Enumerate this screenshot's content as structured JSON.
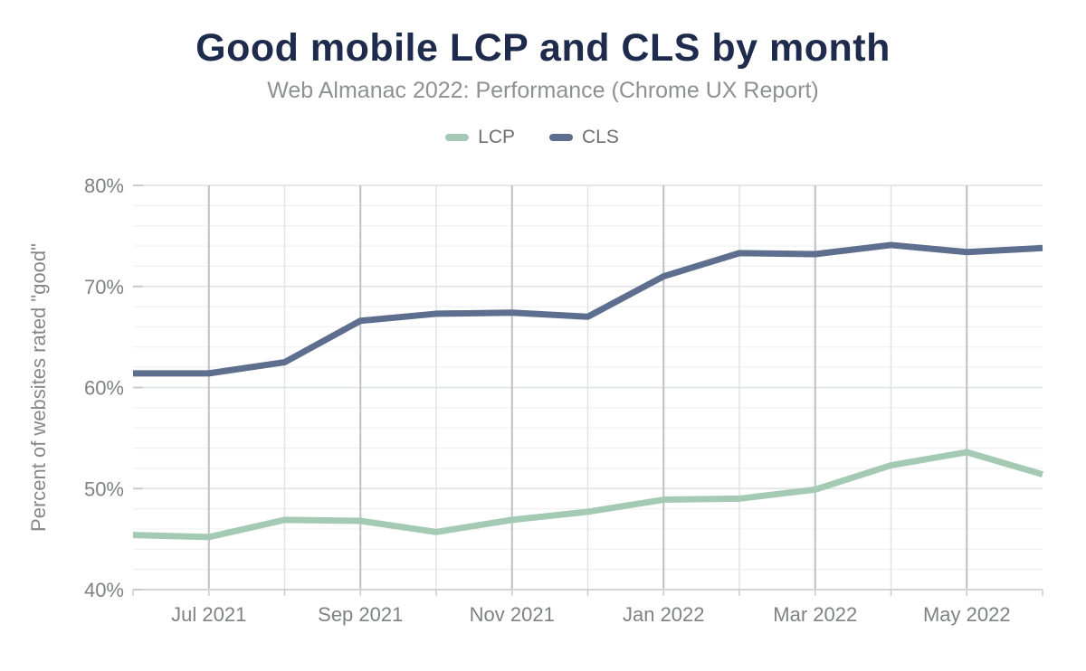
{
  "chart": {
    "title": "Good mobile LCP and CLS by month",
    "subtitle": "Web Almanac 2022: Performance (Chrome UX Report)",
    "legend": [
      {
        "label": "LCP"
      },
      {
        "label": "CLS"
      }
    ],
    "colors": {
      "title": "#1f2b4d",
      "subtitle": "#8e9092",
      "legend_label": "#6d6f72",
      "tick_label": "#7f8184",
      "axis_title": "#85878a",
      "grid_major": "#e2e4e6",
      "grid_minor": "#eff0f1",
      "grid_vert_labeled": "#bcc1c5",
      "grid_vert_unlabeled": "#dfe1e3",
      "axis_line": "#d2d5d7",
      "tick": "#c9ccce"
    }
  },
  "chart_data": {
    "type": "line",
    "title": "Good mobile LCP and CLS by month",
    "subtitle": "Web Almanac 2022: Performance (Chrome UX Report)",
    "xlabel": "",
    "ylabel": "Percent of websites rated \"good\"",
    "x": [
      "Jun 2021",
      "Jul 2021",
      "Aug 2021",
      "Sep 2021",
      "Oct 2021",
      "Nov 2021",
      "Dec 2021",
      "Jan 2022",
      "Feb 2022",
      "Mar 2022",
      "Apr 2022",
      "May 2022",
      "Jun 2022"
    ],
    "series": [
      {
        "name": "LCP",
        "color": "#a4cab4",
        "values": [
          45.4,
          45.2,
          46.9,
          46.8,
          45.7,
          46.9,
          47.7,
          48.9,
          49.0,
          49.9,
          52.3,
          53.6,
          51.4
        ]
      },
      {
        "name": "CLS",
        "color": "#5d6e8e",
        "values": [
          61.4,
          61.4,
          62.5,
          66.6,
          67.3,
          67.4,
          67.0,
          71.0,
          73.3,
          73.2,
          74.1,
          73.4,
          73.8
        ]
      }
    ],
    "ylim": [
      40,
      80
    ],
    "y_ticks": [
      40,
      50,
      60,
      70,
      80
    ],
    "y_tick_labels": [
      "40%",
      "50%",
      "60%",
      "70%",
      "80%"
    ],
    "y_minor_step": 2,
    "x_tick_indices": [
      1,
      3,
      5,
      7,
      9,
      11
    ],
    "x_tick_labels": [
      "Jul 2021",
      "Sep 2021",
      "Nov 2021",
      "Jan 2022",
      "Mar 2022",
      "May 2022"
    ],
    "grid": true,
    "legend_position": "top"
  }
}
